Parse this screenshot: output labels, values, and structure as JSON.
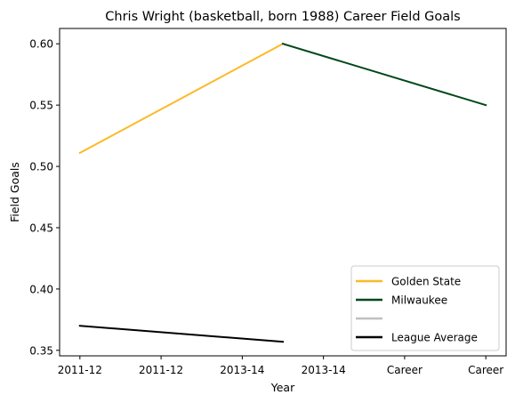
{
  "chart_data": {
    "type": "line",
    "title": "Chris Wright (basketball, born 1988) Career Field Goals",
    "xlabel": "Year",
    "ylabel": "Field Goals",
    "x_tick_labels": [
      "2011-12",
      "2011-12",
      "2013-14",
      "2013-14",
      "Career",
      "Career"
    ],
    "y_ticks": [
      0.35,
      0.4,
      0.45,
      0.5,
      0.55,
      0.6
    ],
    "y_tick_labels": [
      "0.35",
      "0.40",
      "0.45",
      "0.50",
      "0.55",
      "0.60"
    ],
    "ylim": [
      0.3455,
      0.6125
    ],
    "grid": false,
    "legend_position": "bottom-right",
    "series": [
      {
        "name": "Golden State",
        "color": "#FDB927",
        "points": [
          [
            0,
            0.511
          ],
          [
            2.5,
            0.6
          ]
        ]
      },
      {
        "name": "Milwaukee",
        "color": "#00471B",
        "points": [
          [
            2.5,
            0.6
          ],
          [
            5,
            0.55
          ]
        ]
      },
      {
        "name": "",
        "color": "#C0C0C0",
        "points": []
      },
      {
        "name": "League Average",
        "color": "#000000",
        "points": [
          [
            0,
            0.37
          ],
          [
            2.5,
            0.357
          ]
        ]
      }
    ]
  }
}
